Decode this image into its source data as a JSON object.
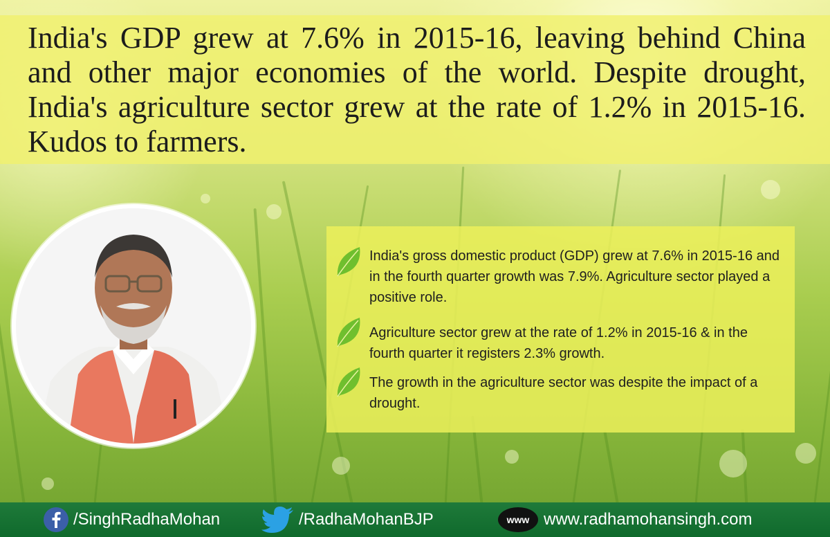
{
  "headline": "India's GDP grew at 7.6% in 2015-16, leaving behind China and other major economies of the world. Despite drought, India's agriculture sector grew at the rate of 1.2% in 2015-16.  Kudos to farmers.",
  "bullets": [
    "India's gross domestic product (GDP) grew at 7.6% in 2015-16 and in the fourth quarter growth was 7.9%. Agriculture sector played a positive role.",
    "Agriculture sector grew at the rate of 1.2% in 2015-16 & in the fourth quarter it registers 2.3% growth.",
    "The growth in the agriculture sector was despite the impact of a drought."
  ],
  "footer": {
    "facebook": "/SinghRadhaMohan",
    "twitter": "/RadhaMohanBJP",
    "www_label": "www",
    "website": "www.radhamohansingh.com"
  },
  "colors": {
    "headline_band": "#f0f06e",
    "info_box": "#ecf05a",
    "footer": "#0f6a2c",
    "leaf": "#6fbf2e"
  },
  "icons": [
    "facebook-icon",
    "twitter-icon",
    "www-icon",
    "leaf-icon"
  ]
}
